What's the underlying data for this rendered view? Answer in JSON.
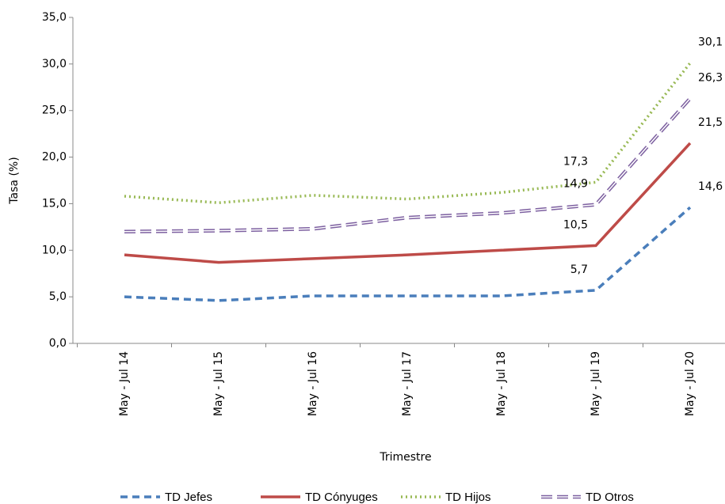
{
  "chart_data": {
    "type": "line",
    "y_label": "Tasa (%)",
    "x_label": "Trimestre",
    "categories": [
      "May - Jul 14",
      "May - Jul 15",
      "May - Jul 16",
      "May - Jul 17",
      "May - Jul 18",
      "May - Jul 19",
      "May - Jul 20"
    ],
    "series": [
      {
        "name": "TD Jefes",
        "color": "#4a7ebb",
        "style": "dashed",
        "values": [
          5.0,
          4.6,
          5.1,
          5.1,
          5.1,
          5.7,
          14.6
        ],
        "value_labels": [
          null,
          null,
          null,
          null,
          null,
          "5,7",
          "14,6"
        ]
      },
      {
        "name": "TD Cónyuges",
        "color": "#be4b48",
        "style": "solid",
        "values": [
          9.5,
          8.7,
          9.1,
          9.5,
          10.0,
          10.5,
          21.5
        ],
        "value_labels": [
          null,
          null,
          null,
          null,
          null,
          "10,5",
          "21,5"
        ]
      },
      {
        "name": "TD Hijos",
        "color": "#98b954",
        "style": "dotted",
        "values": [
          15.8,
          15.1,
          15.9,
          15.5,
          16.2,
          17.3,
          30.1
        ],
        "value_labels": [
          null,
          null,
          null,
          null,
          null,
          "17,3",
          "30,1"
        ]
      },
      {
        "name": "TD Otros",
        "color": "#7d60a0",
        "style": "double-dashed",
        "values": [
          12.0,
          12.1,
          12.3,
          13.5,
          14.0,
          14.9,
          26.3
        ],
        "value_labels": [
          null,
          null,
          null,
          null,
          null,
          "14,9",
          "26,3"
        ]
      }
    ],
    "ylim": [
      0,
      35
    ],
    "yticks": [
      {
        "value": 0,
        "label": "0,0"
      },
      {
        "value": 5,
        "label": "5,0"
      },
      {
        "value": 10,
        "label": "10,0"
      },
      {
        "value": 15,
        "label": "15,0"
      },
      {
        "value": 20,
        "label": "20,0"
      },
      {
        "value": 25,
        "label": "25,0"
      },
      {
        "value": 30,
        "label": "30,0"
      },
      {
        "value": 35,
        "label": "35,0"
      }
    ],
    "legend": "bottom"
  }
}
